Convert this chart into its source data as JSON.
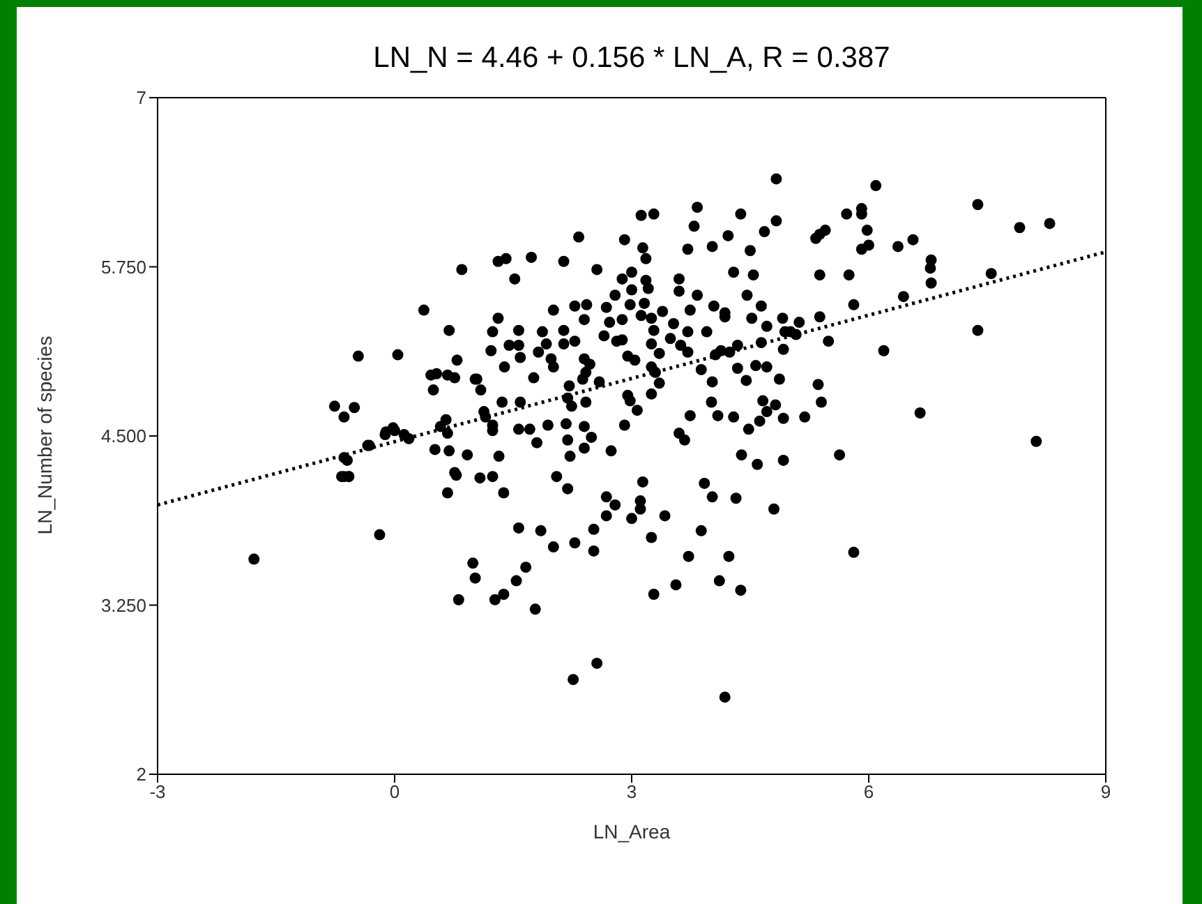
{
  "chart_data": {
    "type": "scatter",
    "title": "LN_N = 4.46 + 0.156 * LN_A, R = 0.387",
    "xlabel": "LN_Area",
    "ylabel": "LN_Number of species",
    "xlim": [
      -3,
      9
    ],
    "xticks": [
      -3,
      0,
      3,
      6,
      9
    ],
    "ylim": [
      2,
      7
    ],
    "yticks": [
      2,
      {
        "value": 3.25,
        "label": "3.250"
      },
      {
        "value": 4.5,
        "label": "4.500"
      },
      {
        "value": 5.75,
        "label": "5.750"
      },
      7
    ],
    "marker": "circle",
    "series": [
      {
        "color": "#000000",
        "x": [
          -1.78,
          -0.76,
          -0.51,
          -0.46,
          -0.6,
          -0.58,
          -0.67,
          -0.19,
          -0.34,
          -0.11,
          0.0,
          0.04,
          0.37,
          0.85,
          0.69,
          0.79,
          0.46,
          0.53,
          0.67,
          0.76,
          0.49,
          1.02,
          -0.64,
          -0.32,
          -0.64,
          -0.12,
          -0.02,
          0.12,
          0.18,
          0.51,
          0.69,
          0.65,
          0.58,
          0.67,
          0.92,
          0.76,
          -0.64,
          -0.58,
          0.67,
          0.78,
          0.99,
          1.02,
          0.81,
          4.83,
          3.83,
          3.12,
          3.28,
          4.38,
          3.79,
          4.83,
          2.33,
          4.68,
          4.22,
          2.91,
          3.71,
          4.02,
          4.5,
          3.14,
          3.18,
          1.31,
          1.41,
          1.73,
          2.14,
          2.56,
          1.52,
          3.0,
          2.88,
          3.18,
          3.6,
          4.29,
          4.54,
          3.21,
          3.0,
          3.6,
          3.83,
          4.46,
          2.79,
          3.16,
          2.98,
          4.04,
          4.64,
          2.68,
          2.01,
          2.28,
          2.43,
          3.74,
          4.18,
          1.31,
          2.4,
          2.72,
          2.88,
          3.12,
          3.25,
          3.39,
          3.53,
          4.52,
          4.91,
          4.18,
          1.24,
          1.57,
          1.87,
          2.14,
          3.28,
          3.71,
          3.95,
          4.71,
          2.65,
          3.49,
          1.22,
          1.45,
          1.57,
          1.92,
          2.14,
          2.28,
          2.81,
          2.88,
          3.25,
          3.62,
          4.13,
          4.34,
          4.64,
          4.94,
          4.92,
          1.59,
          1.82,
          1.98,
          2.4,
          2.95,
          3.35,
          3.71,
          4.06,
          4.24,
          1.39,
          2.01,
          2.47,
          3.04,
          3.25,
          4.34,
          4.57,
          4.71,
          2.42,
          3.3,
          3.88,
          1.04,
          1.76,
          2.38,
          2.59,
          3.35,
          4.45,
          4.87,
          1.09,
          2.21,
          3.25,
          4.02,
          2.95,
          1.36,
          1.59,
          2.19,
          2.42,
          2.98,
          4.01,
          4.66,
          4.82,
          1.13,
          2.24,
          3.07,
          1.15,
          3.74,
          4.09,
          4.29,
          4.62,
          4.71,
          4.92,
          1.24,
          1.57,
          1.71,
          1.94,
          2.17,
          2.4,
          2.91,
          4.48,
          1.24,
          1.8,
          2.19,
          2.49,
          3.6,
          3.67,
          2.4,
          2.74,
          1.32,
          2.22,
          4.39,
          4.59,
          4.92,
          1.08,
          1.24,
          1.38,
          2.05,
          2.19,
          2.68,
          2.79,
          2.68,
          2.52,
          3.14,
          3.11,
          3.11,
          3.0,
          3.42,
          3.25,
          3.92,
          4.02,
          4.32,
          4.8,
          3.88,
          3.72,
          4.23,
          4.11,
          4.38,
          3.56,
          3.28,
          1.57,
          1.85,
          2.01,
          2.28,
          2.52,
          1.27,
          1.78,
          1.54,
          1.38,
          1.66,
          2.56,
          2.26,
          4.18,
          6.09,
          5.72,
          5.91,
          5.91,
          5.33,
          5.38,
          5.45,
          5.98,
          5.91,
          6.0,
          6.37,
          6.56,
          7.38,
          7.91,
          8.29,
          6.79,
          6.78,
          6.79,
          5.38,
          5.75,
          7.55,
          6.44,
          5.81,
          5.38,
          5.12,
          5.01,
          5.08,
          5.49,
          6.19,
          7.38,
          5.36,
          5.4,
          5.19,
          6.65,
          5.63,
          8.12,
          5.81
        ],
        "values": [
          3.59,
          4.72,
          4.71,
          5.09,
          4.32,
          4.2,
          4.2,
          3.77,
          4.43,
          4.53,
          4.54,
          5.1,
          5.43,
          5.73,
          5.28,
          5.06,
          4.95,
          4.96,
          4.95,
          4.93,
          4.84,
          4.92,
          4.64,
          4.43,
          4.34,
          4.51,
          4.56,
          4.51,
          4.48,
          4.4,
          4.39,
          4.62,
          4.57,
          4.52,
          4.36,
          4.23,
          4.2,
          4.2,
          4.08,
          4.21,
          3.56,
          3.45,
          3.29,
          6.4,
          6.19,
          6.13,
          6.14,
          6.14,
          6.05,
          6.09,
          5.97,
          6.01,
          5.98,
          5.95,
          5.88,
          5.9,
          5.87,
          5.89,
          5.81,
          5.79,
          5.81,
          5.82,
          5.79,
          5.73,
          5.66,
          5.71,
          5.66,
          5.65,
          5.66,
          5.71,
          5.69,
          5.59,
          5.58,
          5.57,
          5.54,
          5.54,
          5.54,
          5.48,
          5.47,
          5.46,
          5.46,
          5.45,
          5.43,
          5.46,
          5.47,
          5.43,
          5.41,
          5.37,
          5.36,
          5.34,
          5.36,
          5.39,
          5.37,
          5.42,
          5.33,
          5.37,
          5.37,
          5.38,
          5.27,
          5.28,
          5.27,
          5.28,
          5.28,
          5.27,
          5.27,
          5.31,
          5.24,
          5.22,
          5.13,
          5.17,
          5.17,
          5.18,
          5.18,
          5.2,
          5.2,
          5.21,
          5.18,
          5.17,
          5.13,
          5.17,
          5.19,
          5.27,
          5.14,
          5.08,
          5.12,
          5.07,
          5.07,
          5.09,
          5.11,
          5.12,
          5.1,
          5.12,
          5.01,
          5.01,
          5.03,
          5.06,
          5.01,
          5.0,
          5.02,
          5.01,
          4.97,
          4.97,
          4.99,
          4.92,
          4.93,
          4.92,
          4.9,
          4.89,
          4.91,
          4.92,
          4.84,
          4.87,
          4.81,
          4.9,
          4.8,
          4.75,
          4.75,
          4.78,
          4.75,
          4.76,
          4.75,
          4.76,
          4.73,
          4.68,
          4.72,
          4.69,
          4.64,
          4.65,
          4.65,
          4.64,
          4.61,
          4.68,
          4.63,
          4.58,
          4.55,
          4.55,
          4.58,
          4.59,
          4.57,
          4.58,
          4.55,
          4.54,
          4.45,
          4.47,
          4.49,
          4.52,
          4.47,
          4.41,
          4.39,
          4.35,
          4.35,
          4.36,
          4.29,
          4.32,
          4.19,
          4.2,
          4.08,
          4.2,
          4.11,
          4.05,
          3.99,
          3.91,
          3.81,
          4.16,
          4.02,
          3.96,
          3.89,
          3.91,
          3.75,
          4.15,
          4.05,
          4.04,
          3.96,
          3.8,
          3.61,
          3.61,
          3.43,
          3.36,
          3.4,
          3.33,
          3.82,
          3.8,
          3.68,
          3.71,
          3.65,
          3.29,
          3.22,
          3.43,
          3.33,
          3.53,
          2.82,
          2.7,
          2.57,
          6.35,
          6.14,
          6.18,
          6.14,
          5.96,
          5.99,
          6.02,
          6.02,
          5.88,
          5.91,
          5.9,
          5.95,
          6.21,
          6.04,
          6.07,
          5.8,
          5.74,
          5.63,
          5.69,
          5.69,
          5.7,
          5.53,
          5.47,
          5.38,
          5.34,
          5.27,
          5.25,
          5.2,
          5.13,
          5.28,
          4.88,
          4.75,
          4.64,
          4.67,
          4.36,
          4.46,
          3.64
        ]
      },
      {
        "type": "line",
        "color": "#000000",
        "line_style": "dotted",
        "marker": "none",
        "x": [
          -3,
          9
        ],
        "values": [
          3.99,
          5.86
        ]
      }
    ]
  }
}
